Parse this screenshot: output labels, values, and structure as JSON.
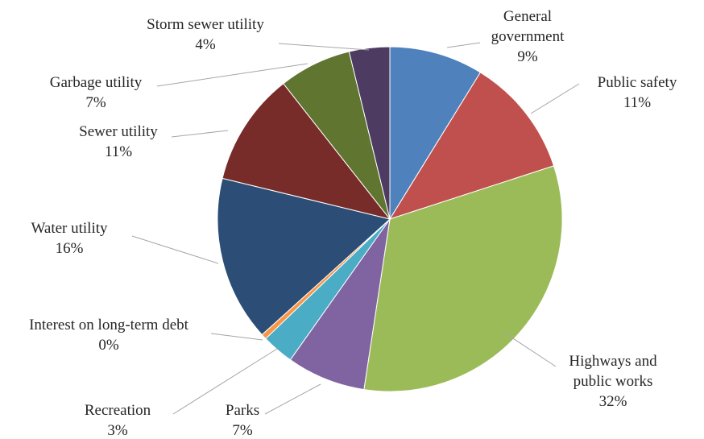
{
  "chart_data": {
    "type": "pie",
    "title": "",
    "start_angle_deg": 0,
    "direction": "clockwise",
    "slices": [
      {
        "label_lines": [
          "General",
          "government"
        ],
        "pct_label": "9%",
        "value": 8.8,
        "color": "#4f81bd"
      },
      {
        "label_lines": [
          "Public safety"
        ],
        "pct_label": "11%",
        "value": 11.2,
        "color": "#c0504d"
      },
      {
        "label_lines": [
          "Highways and",
          "public works"
        ],
        "pct_label": "32%",
        "value": 32.4,
        "color": "#9bbb59"
      },
      {
        "label_lines": [
          "Parks"
        ],
        "pct_label": "7%",
        "value": 7.4,
        "color": "#8064a2"
      },
      {
        "label_lines": [
          "Recreation"
        ],
        "pct_label": "3%",
        "value": 3.0,
        "color": "#4bacc6"
      },
      {
        "label_lines": [
          "Interest on long-term debt"
        ],
        "pct_label": "0%",
        "value": 0.5,
        "color": "#f79646"
      },
      {
        "label_lines": [
          "Water utility"
        ],
        "pct_label": "16%",
        "value": 15.5,
        "color": "#2c4d75"
      },
      {
        "label_lines": [
          "Sewer utility"
        ],
        "pct_label": "11%",
        "value": 10.6,
        "color": "#772c2a"
      },
      {
        "label_lines": [
          "Garbage utility"
        ],
        "pct_label": "7%",
        "value": 6.8,
        "color": "#5f7530"
      },
      {
        "label_lines": [
          "Storm sewer utility"
        ],
        "pct_label": "4%",
        "value": 3.8,
        "color": "#4d3b62"
      }
    ]
  }
}
